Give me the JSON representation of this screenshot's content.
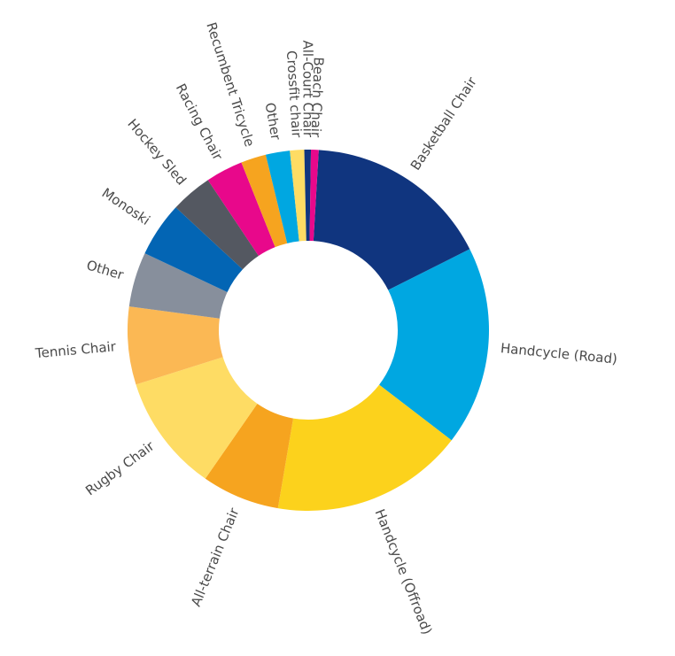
{
  "chart_data": {
    "type": "pie",
    "variant": "donut",
    "title": "",
    "legend": "none",
    "slices": [
      {
        "label": "Basketball Chair",
        "value": 17.0,
        "color": "#10357f"
      },
      {
        "label": "Handcycle (Road)",
        "value": 18.2,
        "color": "#00a7e1"
      },
      {
        "label": "Handcycle (Offroad)",
        "value": 17.6,
        "color": "#fcd21c"
      },
      {
        "label": "All-terrain Chair",
        "value": 7.1,
        "color": "#f6a41f"
      },
      {
        "label": "Rugby Chair",
        "value": 10.7,
        "color": "#fedc64"
      },
      {
        "label": "Tennis Chair",
        "value": 7.1,
        "color": "#fbb854"
      },
      {
        "label": "Other",
        "value": 5.0,
        "color": "#878f9c"
      },
      {
        "label": "Monoski",
        "value": 5.0,
        "color": "#0365b4"
      },
      {
        "label": "Hockey Sled",
        "value": 3.8,
        "color": "#545861"
      },
      {
        "label": "Racing Chair",
        "value": 3.4,
        "color": "#e8088b"
      },
      {
        "label": "Recumbent Tricycle",
        "value": 2.3,
        "color": "#f6a41f"
      },
      {
        "label": "Other",
        "value": 2.2,
        "color": "#00a7e1"
      },
      {
        "label": "Crossfit chair",
        "value": 1.3,
        "color": "#fedc64"
      },
      {
        "label": "All-Court Chair",
        "value": 0.6,
        "color": "#10357f"
      },
      {
        "label": "Beach Chair",
        "value": 0.7,
        "color": "#e8088b"
      }
    ]
  }
}
